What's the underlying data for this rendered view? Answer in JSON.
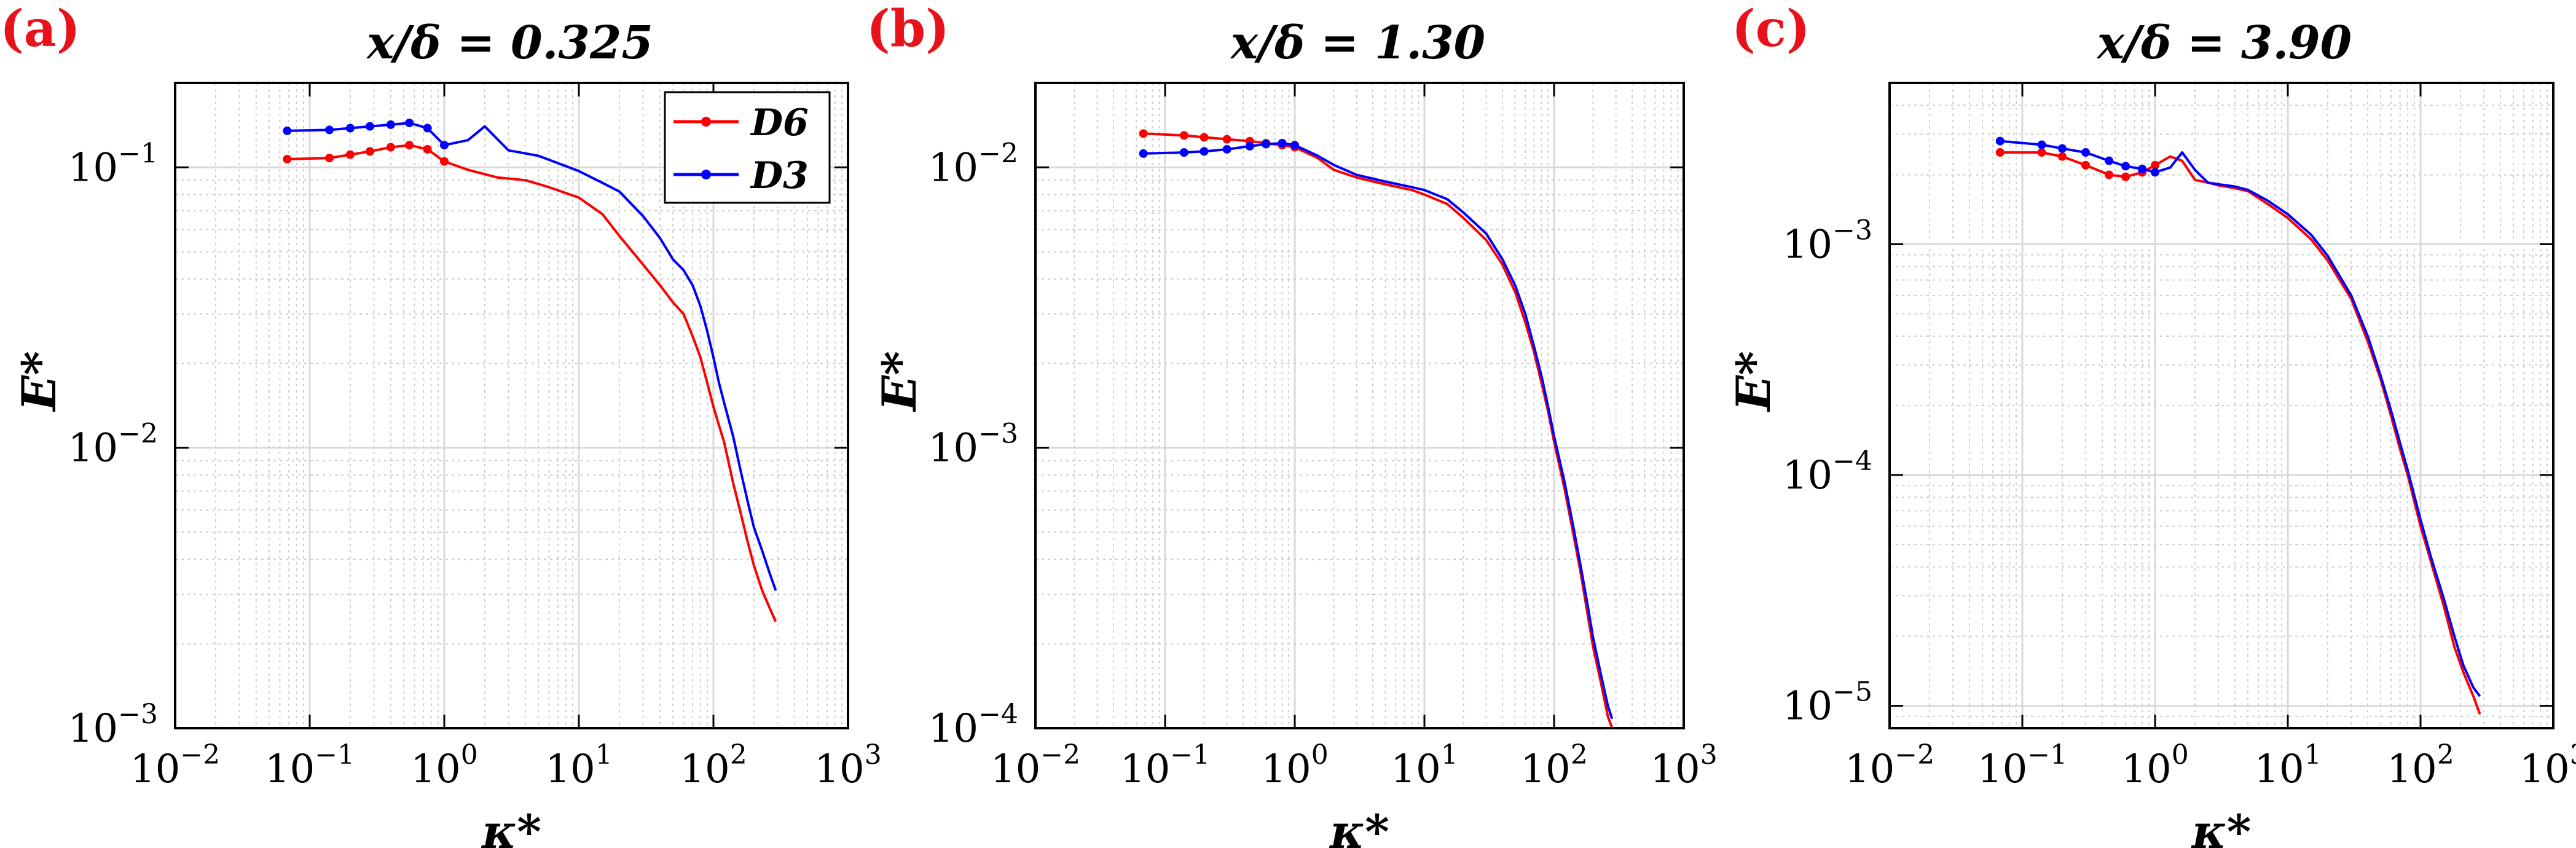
{
  "chart_data": [
    {
      "type": "line",
      "panel_label": "(a)",
      "title": "x/δ = 0.325",
      "xlabel": "κ*",
      "ylabel": "E*",
      "xscale": "log",
      "yscale": "log",
      "xlim": [
        0.01,
        1000
      ],
      "ylim": [
        0.001,
        0.2
      ],
      "xticks": [
        0.01,
        0.1,
        1,
        10,
        100,
        1000
      ],
      "xtick_labels": [
        {
          "base": "10",
          "exp": "−2"
        },
        {
          "base": "10",
          "exp": "−1"
        },
        {
          "base": "10",
          "exp": "0"
        },
        {
          "base": "10",
          "exp": "1"
        },
        {
          "base": "10",
          "exp": "2"
        },
        {
          "base": "10",
          "exp": "3"
        }
      ],
      "yticks": [
        0.001,
        0.01,
        0.1
      ],
      "ytick_labels": [
        {
          "base": "10",
          "exp": "−3"
        },
        {
          "base": "10",
          "exp": "−2"
        },
        {
          "base": "10",
          "exp": "−1"
        }
      ],
      "grid": true,
      "legend": "top-right",
      "series": [
        {
          "name": "D6",
          "color": "#ff0000",
          "x": [
            0.068,
            0.14,
            0.2,
            0.28,
            0.4,
            0.55,
            0.75,
            1.0,
            1.5,
            2.5,
            4.0,
            6.0,
            10,
            15,
            20,
            30,
            40,
            50,
            60,
            70,
            80,
            90,
            100,
            110,
            120,
            140,
            160,
            180,
            200,
            230,
            260,
            290
          ],
          "y": [
            0.107,
            0.108,
            0.111,
            0.114,
            0.118,
            0.12,
            0.116,
            0.105,
            0.098,
            0.092,
            0.09,
            0.085,
            0.078,
            0.068,
            0.057,
            0.045,
            0.038,
            0.033,
            0.03,
            0.025,
            0.021,
            0.017,
            0.014,
            0.012,
            0.0105,
            0.0075,
            0.0058,
            0.0046,
            0.0038,
            0.0031,
            0.0027,
            0.0024
          ]
        },
        {
          "name": "D3",
          "color": "#0000ff",
          "x": [
            0.068,
            0.14,
            0.2,
            0.28,
            0.4,
            0.55,
            0.75,
            1.0,
            1.5,
            2.0,
            3.0,
            5.0,
            10,
            15,
            20,
            30,
            40,
            50,
            60,
            70,
            80,
            90,
            100,
            110,
            120,
            140,
            160,
            180,
            200,
            230,
            260,
            290
          ],
          "y": [
            0.135,
            0.136,
            0.138,
            0.14,
            0.142,
            0.144,
            0.138,
            0.12,
            0.125,
            0.14,
            0.115,
            0.11,
            0.097,
            0.088,
            0.082,
            0.067,
            0.056,
            0.047,
            0.043,
            0.038,
            0.032,
            0.026,
            0.021,
            0.017,
            0.0145,
            0.011,
            0.0082,
            0.0064,
            0.0052,
            0.0043,
            0.0036,
            0.0031
          ]
        }
      ]
    },
    {
      "type": "line",
      "panel_label": "(b)",
      "title": "x/δ = 1.30",
      "xlabel": "κ*",
      "ylabel": "E*",
      "xscale": "log",
      "yscale": "log",
      "xlim": [
        0.01,
        1000
      ],
      "ylim": [
        0.0001,
        0.02
      ],
      "xticks": [
        0.01,
        0.1,
        1,
        10,
        100,
        1000
      ],
      "xtick_labels": [
        {
          "base": "10",
          "exp": "−2"
        },
        {
          "base": "10",
          "exp": "−1"
        },
        {
          "base": "10",
          "exp": "0"
        },
        {
          "base": "10",
          "exp": "1"
        },
        {
          "base": "10",
          "exp": "2"
        },
        {
          "base": "10",
          "exp": "3"
        }
      ],
      "yticks": [
        0.0001,
        0.001,
        0.01
      ],
      "ytick_labels": [
        {
          "base": "10",
          "exp": "−4"
        },
        {
          "base": "10",
          "exp": "−3"
        },
        {
          "base": "10",
          "exp": "−2"
        }
      ],
      "grid": true,
      "series": [
        {
          "name": "D6",
          "color": "#ff0000",
          "x": [
            0.068,
            0.14,
            0.2,
            0.3,
            0.45,
            0.6,
            0.8,
            1.0,
            1.5,
            2.0,
            3.0,
            5.0,
            8.0,
            10,
            15,
            20,
            30,
            40,
            50,
            60,
            70,
            80,
            90,
            100,
            120,
            140,
            160,
            180,
            200,
            230,
            260,
            280
          ],
          "y": [
            0.0132,
            0.013,
            0.0128,
            0.0126,
            0.0124,
            0.0122,
            0.012,
            0.0118,
            0.0108,
            0.0098,
            0.0092,
            0.0087,
            0.0083,
            0.008,
            0.0074,
            0.0066,
            0.0055,
            0.0045,
            0.0036,
            0.0028,
            0.0022,
            0.0017,
            0.00135,
            0.00105,
            0.00072,
            0.0005,
            0.00036,
            0.00026,
            0.000195,
            0.000145,
            0.00011,
            0.0001
          ]
        },
        {
          "name": "D3",
          "color": "#0000ff",
          "x": [
            0.068,
            0.14,
            0.2,
            0.3,
            0.45,
            0.6,
            0.8,
            1.0,
            1.5,
            2.0,
            3.0,
            5.0,
            8.0,
            10,
            15,
            20,
            30,
            40,
            50,
            60,
            70,
            80,
            90,
            100,
            120,
            140,
            160,
            180,
            200,
            230,
            260,
            280
          ],
          "y": [
            0.0112,
            0.0113,
            0.0114,
            0.0116,
            0.0119,
            0.0121,
            0.0122,
            0.012,
            0.011,
            0.0102,
            0.0094,
            0.0089,
            0.0085,
            0.0083,
            0.0077,
            0.0069,
            0.0058,
            0.0047,
            0.0038,
            0.003,
            0.0023,
            0.0018,
            0.0014,
            0.0011,
            0.00076,
            0.00053,
            0.00038,
            0.00028,
            0.00021,
            0.000155,
            0.00012,
            0.000108
          ]
        }
      ]
    },
    {
      "type": "line",
      "panel_label": "(c)",
      "title": "x/δ = 3.90",
      "xlabel": "κ*",
      "ylabel": "E*",
      "xscale": "log",
      "yscale": "log",
      "xlim": [
        0.01,
        1000
      ],
      "ylim": [
        8e-06,
        0.005
      ],
      "xticks": [
        0.01,
        0.1,
        1,
        10,
        100,
        1000
      ],
      "xtick_labels": [
        {
          "base": "10",
          "exp": "−2"
        },
        {
          "base": "10",
          "exp": "−1"
        },
        {
          "base": "10",
          "exp": "0"
        },
        {
          "base": "10",
          "exp": "1"
        },
        {
          "base": "10",
          "exp": "2"
        },
        {
          "base": "10",
          "exp": "3"
        }
      ],
      "yticks": [
        1e-05,
        0.0001,
        0.001
      ],
      "ytick_labels": [
        {
          "base": "10",
          "exp": "−5"
        },
        {
          "base": "10",
          "exp": "−4"
        },
        {
          "base": "10",
          "exp": "−3"
        }
      ],
      "grid": true,
      "series": [
        {
          "name": "D6",
          "color": "#ff0000",
          "x": [
            0.068,
            0.14,
            0.2,
            0.3,
            0.45,
            0.6,
            0.8,
            1.0,
            1.3,
            1.6,
            2.0,
            2.5,
            3.0,
            4.0,
            5.0,
            7.0,
            10,
            15,
            20,
            30,
            40,
            50,
            60,
            70,
            80,
            100,
            120,
            150,
            180,
            210,
            250,
            280
          ],
          "y": [
            0.0025,
            0.0025,
            0.0024,
            0.0022,
            0.002,
            0.00196,
            0.00205,
            0.0022,
            0.0024,
            0.0023,
            0.0019,
            0.00185,
            0.0018,
            0.00175,
            0.0017,
            0.0015,
            0.0013,
            0.00105,
            0.00085,
            0.00058,
            0.00038,
            0.00026,
            0.00018,
            0.00013,
            0.0001,
            6e-05,
            4.2e-05,
            2.7e-05,
            1.8e-05,
            1.4e-05,
            1.1e-05,
            9.2e-06
          ]
        },
        {
          "name": "D3",
          "color": "#0000ff",
          "x": [
            0.068,
            0.14,
            0.2,
            0.3,
            0.45,
            0.6,
            0.8,
            1.0,
            1.3,
            1.6,
            2.0,
            2.5,
            3.0,
            4.0,
            5.0,
            7.0,
            10,
            15,
            20,
            30,
            40,
            50,
            60,
            70,
            80,
            100,
            120,
            150,
            180,
            210,
            250,
            280
          ],
          "y": [
            0.0028,
            0.0027,
            0.0026,
            0.0025,
            0.0023,
            0.00218,
            0.00212,
            0.00205,
            0.00215,
            0.0025,
            0.0021,
            0.00185,
            0.00182,
            0.00178,
            0.00172,
            0.00155,
            0.00135,
            0.0011,
            0.00089,
            0.0006,
            0.0004,
            0.00027,
            0.00019,
            0.000138,
            0.000105,
            6.4e-05,
            4.4e-05,
            2.9e-05,
            2e-05,
            1.5e-05,
            1.2e-05,
            1.1e-05
          ]
        }
      ]
    }
  ]
}
